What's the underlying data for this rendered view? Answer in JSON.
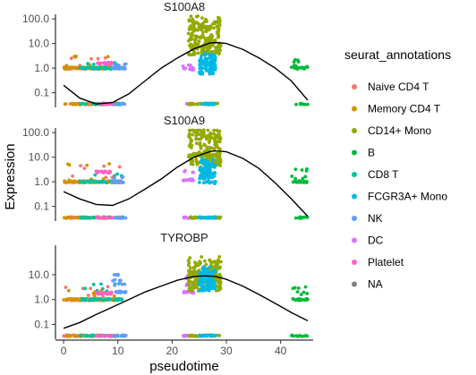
{
  "chart_data": {
    "type": "scatter",
    "xlabel": "pseudotime",
    "ylabel": "Expression",
    "xlim": [
      -1.5,
      46
    ],
    "x_ticks": [
      0,
      10,
      20,
      30,
      40
    ],
    "y_scale": "log10",
    "ylim": [
      0.03,
      130
    ],
    "y_ticks": [
      0.1,
      1.0,
      10.0,
      100.0
    ],
    "y_tick_labels": [
      "0.1",
      "1.0",
      "10.0",
      "100.0"
    ],
    "zero_baseline_y": 0.035,
    "grid": false,
    "legend": {
      "title": "seurat_annotations",
      "position": "right",
      "entries": [
        {
          "label": "Naive CD4 T",
          "color": "#F8766D"
        },
        {
          "label": "Memory CD4 T",
          "color": "#D39200"
        },
        {
          "label": "CD14+ Mono",
          "color": "#93AA00"
        },
        {
          "label": "B",
          "color": "#00BA38"
        },
        {
          "label": "CD8 T",
          "color": "#00C19F"
        },
        {
          "label": "FCGR3A+ Mono",
          "color": "#00B9E3"
        },
        {
          "label": "NK",
          "color": "#619CFF"
        },
        {
          "label": "DC",
          "color": "#DB72FB"
        },
        {
          "label": "Platelet",
          "color": "#FF61C3"
        },
        {
          "label": "NA",
          "color": "#7F7F7F"
        }
      ]
    },
    "clusters": [
      {
        "group": "Naive CD4 T",
        "x_range": [
          0,
          11
        ]
      },
      {
        "group": "Memory CD4 T",
        "x_range": [
          0,
          10
        ]
      },
      {
        "group": "CD8 T",
        "x_range": [
          3,
          11
        ]
      },
      {
        "group": "NK",
        "x_range": [
          9,
          11.5
        ]
      },
      {
        "group": "Platelet",
        "x_range": [
          6,
          9
        ]
      },
      {
        "group": "DC",
        "x_range": [
          22,
          24
        ]
      },
      {
        "group": "CD14+ Mono",
        "x_range": [
          23,
          29
        ]
      },
      {
        "group": "FCGR3A+ Mono",
        "x_range": [
          25,
          28
        ]
      },
      {
        "group": "B",
        "x_range": [
          42,
          45
        ]
      }
    ],
    "panels": [
      {
        "title": "S100A8",
        "show_ticks": [
          "0.1",
          "1.0",
          "10.0",
          "100.0"
        ],
        "trend": {
          "x": [
            0,
            3,
            6,
            9,
            12,
            15,
            18,
            21,
            24,
            27,
            28,
            30,
            33,
            36,
            39,
            42,
            45
          ],
          "y": [
            0.2,
            0.06,
            0.035,
            0.04,
            0.09,
            0.3,
            1.0,
            2.6,
            6.0,
            10.5,
            11.0,
            10.0,
            5.8,
            2.6,
            1.0,
            0.3,
            0.05
          ]
        },
        "levels": {
          "Naive CD4 T": [
            1,
            1.4,
            2.5
          ],
          "Memory CD4 T": [
            1,
            1.2,
            2.8
          ],
          "CD8 T": [
            1,
            1.5
          ],
          "NK": [
            1,
            1.3
          ],
          "Platelet": [
            1.6
          ],
          "DC": [
            0.9,
            1.2
          ],
          "CD14+ Mono": [
            6,
            12,
            25,
            50,
            80
          ],
          "FCGR3A+ Mono": [
            1.0,
            1.5,
            2.5
          ],
          "B": [
            1,
            1.2,
            2
          ]
        }
      },
      {
        "title": "S100A9",
        "show_ticks": [
          "0.1",
          "1.0",
          "10.0",
          "100.0"
        ],
        "trend": {
          "x": [
            0,
            3,
            6,
            9,
            12,
            15,
            18,
            21,
            24,
            27,
            28,
            30,
            33,
            36,
            39,
            42,
            45
          ],
          "y": [
            0.4,
            0.2,
            0.12,
            0.11,
            0.2,
            0.5,
            1.3,
            4.0,
            10.0,
            17.0,
            18.0,
            16.5,
            9.0,
            3.5,
            0.9,
            0.2,
            0.04
          ]
        },
        "levels": {
          "Naive CD4 T": [
            1,
            1.6,
            4
          ],
          "Memory CD4 T": [
            1,
            1.3,
            5
          ],
          "CD8 T": [
            1,
            2
          ],
          "NK": [
            1,
            1.4
          ],
          "Platelet": [
            2.5
          ],
          "DC": [
            1.2,
            2.5
          ],
          "CD14+ Mono": [
            8,
            20,
            40,
            70,
            100
          ],
          "FCGR3A+ Mono": [
            1.5,
            3,
            5
          ],
          "B": [
            1,
            1.5,
            3
          ]
        }
      },
      {
        "title": "TYROBP",
        "show_ticks": [
          "0.1",
          "1.0",
          "10.0"
        ],
        "trend": {
          "x": [
            0,
            3,
            6,
            9,
            12,
            15,
            18,
            21,
            24,
            26,
            28,
            30,
            33,
            36,
            39,
            42,
            45
          ],
          "y": [
            0.07,
            0.12,
            0.25,
            0.5,
            1.0,
            2.0,
            3.5,
            6.0,
            8.5,
            9.0,
            8.5,
            6.5,
            3.5,
            1.6,
            0.7,
            0.3,
            0.14
          ]
        },
        "levels": {
          "Naive CD4 T": [
            1,
            1.5,
            3
          ],
          "Memory CD4 T": [
            1,
            1.3,
            2
          ],
          "CD8 T": [
            1,
            2.5,
            4
          ],
          "NK": [
            2,
            4,
            6,
            9
          ],
          "Platelet": [
            1.8
          ],
          "DC": [
            2,
            4,
            8
          ],
          "CD14+ Mono": [
            4,
            8,
            12,
            20,
            30
          ],
          "FCGR3A+ Mono": [
            4,
            8,
            12
          ],
          "B": [
            1,
            1.8,
            2.8
          ],
          "NA": [
            10,
            3
          ]
        }
      }
    ]
  }
}
